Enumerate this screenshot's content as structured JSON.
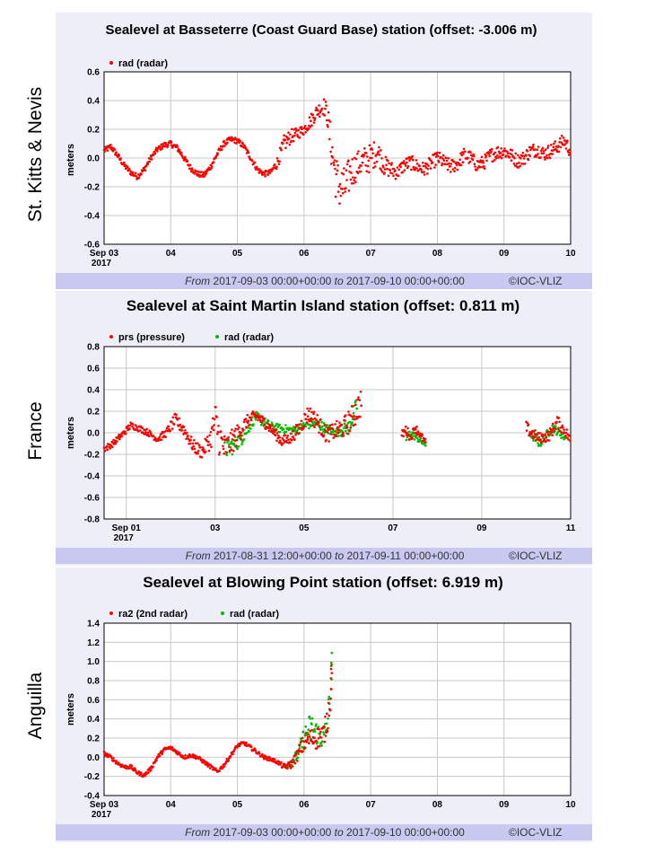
{
  "labels": {
    "p1": "St. Kitts & Nevis",
    "p2": "France",
    "p3": "Anguilla"
  },
  "chart_data": [
    {
      "type": "scatter",
      "title": "Sealevel at Basseterre (Coast Guard Base) station (offset: -3.006 m)",
      "ylabel": "meters",
      "ylim": [
        -0.6,
        0.6
      ],
      "yticks": [
        "0.6",
        "0.4",
        "0.2",
        "0.0",
        "-0.2",
        "-0.4",
        "-0.6"
      ],
      "xlim": [
        3,
        10
      ],
      "xticks": [
        {
          "v": 3,
          "label": "Sep 03",
          "sub": "2017"
        },
        {
          "v": 4,
          "label": "04"
        },
        {
          "v": 5,
          "label": "05"
        },
        {
          "v": 6,
          "label": "06"
        },
        {
          "v": 7,
          "label": "07"
        },
        {
          "v": 8,
          "label": "08"
        },
        {
          "v": 9,
          "label": "09"
        },
        {
          "v": 10,
          "label": "10"
        }
      ],
      "grid": true,
      "legend_position": "top-left",
      "series": [
        {
          "name": "rad (radar)",
          "color": "#ff0000",
          "x": [
            3.0,
            3.1,
            3.2,
            3.3,
            3.4,
            3.5,
            3.6,
            3.7,
            3.8,
            3.9,
            4.0,
            4.1,
            4.2,
            4.3,
            4.4,
            4.5,
            4.6,
            4.7,
            4.8,
            4.9,
            5.0,
            5.1,
            5.2,
            5.3,
            5.4,
            5.5,
            5.6,
            5.7,
            5.8,
            5.9,
            6.0,
            6.1,
            6.2,
            6.3,
            6.35,
            6.4,
            6.5,
            6.6,
            6.7,
            6.8,
            6.9,
            7.0,
            7.1,
            7.2,
            7.3,
            7.4,
            7.5,
            7.6,
            7.7,
            7.8,
            7.9,
            8.0,
            8.1,
            8.2,
            8.3,
            8.4,
            8.5,
            8.6,
            8.7,
            8.8,
            8.9,
            9.0,
            9.1,
            9.2,
            9.3,
            9.4,
            9.5,
            9.6,
            9.7,
            9.8,
            9.9,
            10.0
          ],
          "y": [
            0.05,
            0.08,
            0.02,
            -0.05,
            -0.1,
            -0.13,
            -0.08,
            0.0,
            0.06,
            0.09,
            0.1,
            0.07,
            0.0,
            -0.07,
            -0.11,
            -0.12,
            -0.06,
            0.03,
            0.1,
            0.13,
            0.12,
            0.08,
            0.0,
            -0.08,
            -0.11,
            -0.1,
            -0.03,
            0.1,
            0.15,
            0.17,
            0.2,
            0.26,
            0.33,
            0.36,
            0.3,
            0.1,
            -0.18,
            -0.22,
            -0.1,
            -0.05,
            -0.02,
            0.0,
            0.05,
            -0.05,
            -0.08,
            -0.1,
            -0.05,
            -0.03,
            -0.06,
            -0.08,
            -0.04,
            0.0,
            -0.03,
            -0.06,
            -0.04,
            0.02,
            0.0,
            -0.05,
            -0.03,
            0.02,
            0.04,
            0.05,
            0.02,
            -0.02,
            0.0,
            0.05,
            0.06,
            0.03,
            0.05,
            0.08,
            0.12,
            0.05
          ],
          "spread": [
            0.02,
            0.02,
            0.02,
            0.02,
            0.02,
            0.02,
            0.02,
            0.02,
            0.02,
            0.02,
            0.02,
            0.02,
            0.02,
            0.02,
            0.02,
            0.02,
            0.02,
            0.02,
            0.02,
            0.02,
            0.02,
            0.02,
            0.02,
            0.02,
            0.02,
            0.02,
            0.04,
            0.06,
            0.05,
            0.04,
            0.04,
            0.05,
            0.05,
            0.06,
            0.08,
            0.14,
            0.18,
            0.16,
            0.12,
            0.1,
            0.1,
            0.1,
            0.09,
            0.07,
            0.06,
            0.05,
            0.05,
            0.05,
            0.05,
            0.05,
            0.05,
            0.05,
            0.05,
            0.05,
            0.05,
            0.05,
            0.05,
            0.05,
            0.05,
            0.05,
            0.05,
            0.05,
            0.05,
            0.05,
            0.05,
            0.05,
            0.05,
            0.05,
            0.05,
            0.05,
            0.05,
            0.05
          ]
        }
      ],
      "footer": {
        "from_label": "From",
        "from_value": "2017-09-03 00:00+00:00",
        "to_label": "to",
        "to_value": "2017-09-10 00:00+00:00",
        "credit": "©IOC-VLIZ"
      }
    },
    {
      "type": "scatter",
      "title": "Sealevel at Saint Martin Island station (offset: 0.811 m)",
      "ylabel": "meters",
      "ylim": [
        -0.8,
        0.8
      ],
      "yticks": [
        "0.8",
        "0.6",
        "0.4",
        "0.2",
        "0.0",
        "-0.2",
        "-0.4",
        "-0.6",
        "-0.8"
      ],
      "xlim": [
        0.5,
        11
      ],
      "xticks": [
        {
          "v": 1,
          "label": "Sep 01",
          "sub": "2017"
        },
        {
          "v": 3,
          "label": "03"
        },
        {
          "v": 5,
          "label": "05"
        },
        {
          "v": 7,
          "label": "07"
        },
        {
          "v": 9,
          "label": "09"
        },
        {
          "v": 11,
          "label": "11"
        }
      ],
      "grid": true,
      "legend_position": "top-left",
      "series": [
        {
          "name": "prs (pressure)",
          "color": "#ff0000",
          "x": [
            0.5,
            0.7,
            0.9,
            1.1,
            1.3,
            1.5,
            1.7,
            1.9,
            2.1,
            2.3,
            2.5,
            2.7,
            2.9,
            3.0,
            3.1,
            3.2,
            3.3,
            3.5,
            3.7,
            3.9,
            4.1,
            4.3,
            4.5,
            4.7,
            4.9,
            5.1,
            5.3,
            5.5,
            5.7,
            5.9,
            6.1,
            6.3,
            7.2,
            7.3,
            7.4,
            7.5,
            7.75,
            10.0,
            10.1,
            10.3,
            10.5,
            10.7,
            10.9,
            11.0
          ],
          "y": [
            -0.15,
            -0.1,
            -0.02,
            0.07,
            0.04,
            0.0,
            -0.06,
            0.0,
            0.12,
            0.03,
            -0.12,
            -0.18,
            -0.05,
            0.12,
            -0.05,
            -0.15,
            -0.12,
            -0.02,
            0.1,
            0.16,
            0.1,
            0.02,
            -0.08,
            -0.05,
            0.05,
            0.18,
            0.1,
            -0.02,
            0.02,
            0.05,
            0.15,
            0.3,
            -0.02,
            0.03,
            -0.05,
            0.05,
            -0.1,
            0.05,
            0.0,
            -0.05,
            -0.03,
            0.1,
            0.0,
            -0.08
          ],
          "spread": [
            0.03,
            0.03,
            0.03,
            0.03,
            0.03,
            0.03,
            0.03,
            0.04,
            0.06,
            0.06,
            0.06,
            0.06,
            0.1,
            0.18,
            0.18,
            0.14,
            0.12,
            0.1,
            0.06,
            0.05,
            0.05,
            0.05,
            0.05,
            0.05,
            0.07,
            0.08,
            0.08,
            0.07,
            0.08,
            0.1,
            0.12,
            0.14,
            0.04,
            0.05,
            0.04,
            0.04,
            0.03,
            0.06,
            0.05,
            0.05,
            0.05,
            0.06,
            0.05,
            0.05
          ]
        },
        {
          "name": "rad (radar)",
          "color": "#00bb00",
          "x": [
            3.2,
            3.4,
            3.6,
            3.9,
            4.3,
            4.8,
            5.2,
            5.7,
            6.0,
            6.2,
            7.3,
            7.4,
            7.75,
            10.1,
            10.3,
            10.6,
            10.9
          ],
          "y": [
            -0.15,
            -0.12,
            -0.05,
            0.15,
            0.05,
            0.02,
            0.1,
            0.0,
            0.05,
            0.25,
            -0.05,
            0.0,
            -0.12,
            0.0,
            -0.1,
            0.05,
            -0.05
          ],
          "spread": [
            0.1,
            0.08,
            0.06,
            0.05,
            0.04,
            0.04,
            0.05,
            0.04,
            0.06,
            0.1,
            0.04,
            0.04,
            0.02,
            0.05,
            0.04,
            0.04,
            0.04
          ]
        }
      ],
      "footer": {
        "from_label": "From",
        "from_value": "2017-08-31 12:00+00:00",
        "to_label": "to",
        "to_value": "2017-09-11 00:00+00:00",
        "credit": "©IOC-VLIZ"
      }
    },
    {
      "type": "scatter",
      "title": "Sealevel at Blowing Point station (offset: 6.919 m)",
      "ylabel": "meters",
      "ylim": [
        -0.4,
        1.4
      ],
      "yticks": [
        "1.4",
        "1.2",
        "1.0",
        "0.8",
        "0.6",
        "0.4",
        "0.2",
        "0.0",
        "-0.2",
        "-0.4"
      ],
      "xlim": [
        3,
        10
      ],
      "xticks": [
        {
          "v": 3,
          "label": "Sep 03",
          "sub": "2017"
        },
        {
          "v": 4,
          "label": "04"
        },
        {
          "v": 5,
          "label": "05"
        },
        {
          "v": 6,
          "label": "06"
        },
        {
          "v": 7,
          "label": "07"
        },
        {
          "v": 8,
          "label": "08"
        },
        {
          "v": 9,
          "label": "09"
        },
        {
          "v": 10,
          "label": "10"
        }
      ],
      "grid": true,
      "legend_position": "top-left",
      "series": [
        {
          "name": "ra2 (2nd radar)",
          "color": "#ff0000",
          "x": [
            3.0,
            3.1,
            3.2,
            3.3,
            3.4,
            3.5,
            3.6,
            3.7,
            3.8,
            3.9,
            4.0,
            4.1,
            4.2,
            4.3,
            4.4,
            4.5,
            4.6,
            4.7,
            4.8,
            4.9,
            5.0,
            5.1,
            5.2,
            5.3,
            5.4,
            5.5,
            5.6,
            5.7,
            5.8,
            5.9,
            6.0,
            6.1,
            6.2,
            6.3,
            6.35,
            6.4,
            6.42
          ],
          "y": [
            0.04,
            0.0,
            -0.06,
            -0.1,
            -0.1,
            -0.16,
            -0.19,
            -0.12,
            0.0,
            0.08,
            0.1,
            0.05,
            0.0,
            0.02,
            0.0,
            -0.05,
            -0.1,
            -0.15,
            -0.08,
            0.02,
            0.12,
            0.15,
            0.1,
            0.05,
            0.0,
            -0.02,
            -0.05,
            -0.1,
            -0.08,
            0.02,
            0.15,
            0.2,
            0.2,
            0.25,
            0.4,
            0.7,
            1.05
          ],
          "spread": [
            0.02,
            0.02,
            0.02,
            0.02,
            0.02,
            0.02,
            0.02,
            0.02,
            0.02,
            0.02,
            0.02,
            0.02,
            0.02,
            0.02,
            0.02,
            0.02,
            0.02,
            0.02,
            0.02,
            0.02,
            0.02,
            0.02,
            0.02,
            0.02,
            0.02,
            0.02,
            0.02,
            0.03,
            0.04,
            0.06,
            0.1,
            0.1,
            0.12,
            0.12,
            0.14,
            0.2,
            0.16
          ]
        },
        {
          "name": "rad (radar)",
          "color": "#00bb00",
          "x": [
            5.7,
            5.8,
            5.9,
            6.0,
            6.1,
            6.2,
            6.3,
            6.35,
            6.4,
            6.42
          ],
          "y": [
            -0.1,
            -0.05,
            0.02,
            0.2,
            0.3,
            0.25,
            0.2,
            0.35,
            0.7,
            1.0
          ],
          "spread": [
            0.03,
            0.04,
            0.06,
            0.12,
            0.18,
            0.12,
            0.14,
            0.16,
            0.2,
            0.18
          ]
        }
      ],
      "footer": {
        "from_label": "From",
        "from_value": "2017-09-03 00:00+00:00",
        "to_label": "to",
        "to_value": "2017-09-10 00:00+00:00",
        "credit": "©IOC-VLIZ"
      }
    }
  ]
}
